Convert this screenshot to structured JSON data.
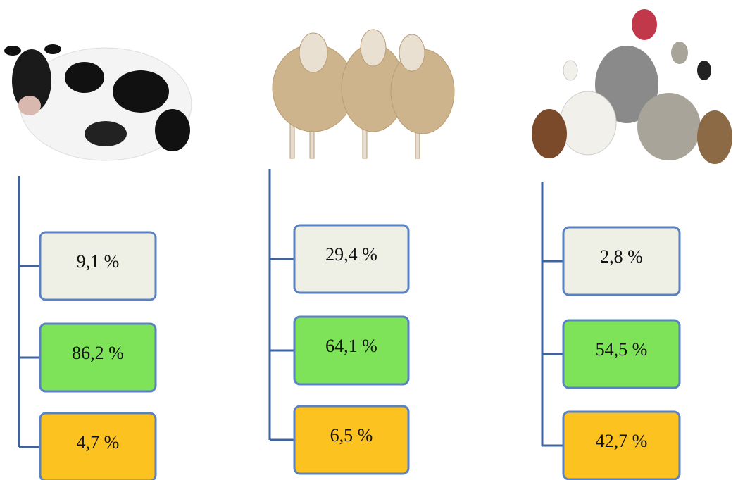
{
  "columns": [
    {
      "boxes": [
        "9,1 %",
        "86,2 %",
        "4,7 %"
      ]
    },
    {
      "boxes": [
        "29,4 %",
        "64,1 %",
        "6,5 %"
      ]
    },
    {
      "boxes": [
        "2,8 %",
        "54,5 %",
        "42,7 %"
      ]
    }
  ]
}
